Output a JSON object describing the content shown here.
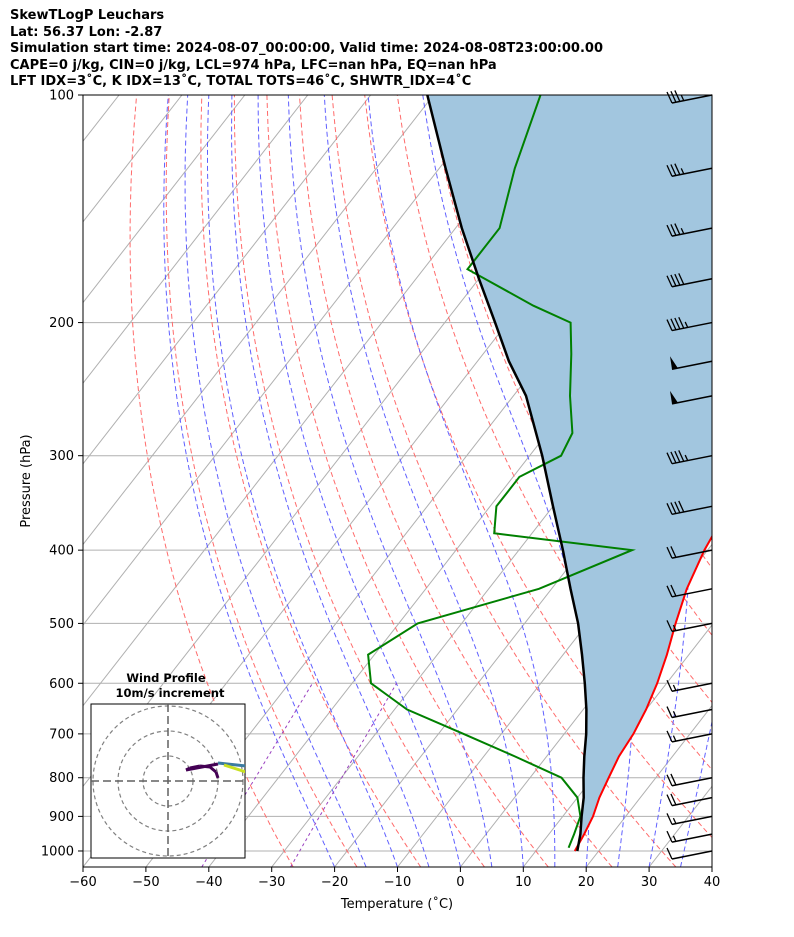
{
  "header": {
    "line1": "SkewTLogP Leuchars",
    "line2": "Lat: 56.37   Lon: -2.87",
    "line3": "Simulation start time: 2024-08-07_00:00:00, Valid time: 2024-08-08T23:00:00.00",
    "line4": "CAPE=0 j/kg, CIN=0 j/kg, LCL=974 hPa, LFC=nan hPa, EQ=nan hPa",
    "line5": "LFT IDX=3˚C, K IDX=13˚C, TOTAL TOTS=46˚C, SHWTR_IDX=4˚C"
  },
  "chart_data": {
    "type": "line",
    "subtype": "skew-T log-P diagram",
    "xlabel": "Temperature (˚C)",
    "ylabel": "Pressure (hPa)",
    "xlim": [
      -60,
      40
    ],
    "ylim": [
      1050,
      100
    ],
    "y_scale": "log",
    "x_ticks": [
      "−60",
      "−50",
      "−40",
      "−30",
      "−20",
      "−10",
      "0",
      "10",
      "20",
      "30",
      "40"
    ],
    "y_ticks": [
      "100",
      "200",
      "300",
      "400",
      "500",
      "600",
      "700",
      "800",
      "900",
      "1000"
    ],
    "grid": true,
    "series": [
      {
        "role": "temperature",
        "color": "#ff0000",
        "points": [
          [
            16.2,
            1000
          ],
          [
            15.6,
            950
          ],
          [
            14.8,
            900
          ],
          [
            13.5,
            850
          ],
          [
            12.5,
            800
          ],
          [
            11.5,
            750
          ],
          [
            11.0,
            700
          ],
          [
            10.0,
            650
          ],
          [
            8.5,
            600
          ],
          [
            6.5,
            550
          ],
          [
            4.0,
            500
          ],
          [
            1.5,
            450
          ],
          [
            -0.5,
            400
          ],
          [
            -2.0,
            350
          ],
          [
            -3.5,
            300
          ],
          [
            -5.0,
            250
          ],
          [
            -8.0,
            225
          ],
          [
            -12.0,
            200
          ],
          [
            -17.0,
            175
          ],
          [
            -21.0,
            150
          ],
          [
            -24.0,
            125
          ],
          [
            -28.0,
            100
          ]
        ]
      },
      {
        "role": "dewpoint",
        "color": "#008000",
        "points": [
          [
            14.8,
            990
          ],
          [
            14.0,
            950
          ],
          [
            12.8,
            900
          ],
          [
            10.0,
            850
          ],
          [
            5.0,
            800
          ],
          [
            -5.0,
            750
          ],
          [
            -16.0,
            700
          ],
          [
            -28.0,
            650
          ],
          [
            -37.0,
            600
          ],
          [
            -41.0,
            550
          ],
          [
            -37.0,
            500
          ],
          [
            -22.0,
            450
          ],
          [
            -12.0,
            400
          ],
          [
            -36.0,
            380
          ],
          [
            -39.0,
            350
          ],
          [
            -39.0,
            320
          ],
          [
            -35.0,
            300
          ],
          [
            -36.0,
            280
          ],
          [
            -41.0,
            250
          ],
          [
            -46.0,
            220
          ],
          [
            -50.0,
            200
          ],
          [
            -58.0,
            190
          ],
          [
            -73.0,
            170
          ],
          [
            -73.0,
            150
          ],
          [
            -78.0,
            125
          ],
          [
            -83.0,
            100
          ]
        ]
      },
      {
        "role": "parcel",
        "color": "#000000",
        "points": [
          [
            16.6,
            1000
          ],
          [
            15.0,
            950
          ],
          [
            13.0,
            900
          ],
          [
            11.0,
            850
          ],
          [
            8.5,
            800
          ],
          [
            6.0,
            750
          ],
          [
            3.5,
            700
          ],
          [
            0.5,
            650
          ],
          [
            -3.0,
            600
          ],
          [
            -7.0,
            550
          ],
          [
            -11.5,
            500
          ],
          [
            -17.0,
            450
          ],
          [
            -23.0,
            400
          ],
          [
            -30.0,
            350
          ],
          [
            -38.0,
            300
          ],
          [
            -48.0,
            250
          ],
          [
            -55.0,
            225
          ],
          [
            -62.0,
            200
          ],
          [
            -70.0,
            175
          ],
          [
            -79.0,
            150
          ],
          [
            -89.0,
            125
          ],
          [
            -101.0,
            100
          ]
        ]
      }
    ],
    "shaded_region": {
      "between": [
        "temperature",
        "parcel"
      ],
      "color": "#a2c6df"
    },
    "wind_barbs": [
      {
        "p": 100,
        "speed_kt": 35
      },
      {
        "p": 125,
        "speed_kt": 35
      },
      {
        "p": 150,
        "speed_kt": 35
      },
      {
        "p": 175,
        "speed_kt": 40
      },
      {
        "p": 200,
        "speed_kt": 45
      },
      {
        "p": 225,
        "speed_kt": 50
      },
      {
        "p": 250,
        "speed_kt": 50
      },
      {
        "p": 300,
        "speed_kt": 45
      },
      {
        "p": 350,
        "speed_kt": 40
      },
      {
        "p": 400,
        "speed_kt": 20
      },
      {
        "p": 450,
        "speed_kt": 20
      },
      {
        "p": 500,
        "speed_kt": 15
      },
      {
        "p": 600,
        "speed_kt": 15
      },
      {
        "p": 650,
        "speed_kt": 15
      },
      {
        "p": 700,
        "speed_kt": 15
      },
      {
        "p": 800,
        "speed_kt": 20
      },
      {
        "p": 850,
        "speed_kt": 20
      },
      {
        "p": 900,
        "speed_kt": 15
      },
      {
        "p": 950,
        "speed_kt": 15
      },
      {
        "p": 1000,
        "speed_kt": 10
      }
    ],
    "inset": {
      "title_line1": "Wind Profile",
      "title_line2": "10m/s increment",
      "type": "hodograph"
    }
  }
}
